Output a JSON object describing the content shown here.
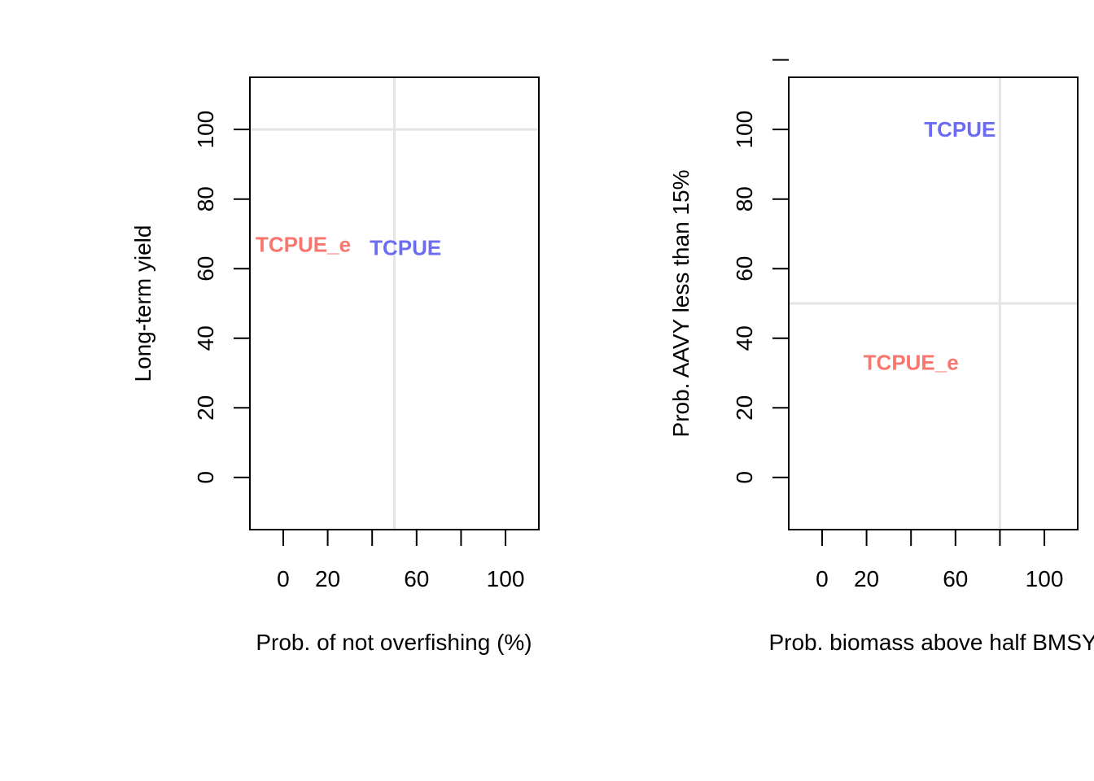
{
  "chart_data": [
    {
      "type": "scatter",
      "xlabel": "Prob. of not overfishing (%)",
      "ylabel": "Long-term yield",
      "xlim": [
        -15,
        115
      ],
      "ylim": [
        -15,
        115
      ],
      "xticks": [
        0,
        20,
        40,
        60,
        80,
        100
      ],
      "xtick_labels": [
        "0",
        "20",
        "",
        "60",
        "",
        "100"
      ],
      "yticks": [
        0,
        20,
        40,
        60,
        80,
        100
      ],
      "ytick_labels": [
        "0",
        "20",
        "40",
        "60",
        "80",
        "100"
      ],
      "reference_lines": {
        "vertical": 50,
        "horizontal": 100
      },
      "points": [
        {
          "label": "TCPUE_e",
          "x": 9,
          "y": 67,
          "color": "#F8766D"
        },
        {
          "label": "TCPUE",
          "x": 55,
          "y": 66,
          "color": "#6C6CF2"
        }
      ]
    },
    {
      "type": "scatter",
      "xlabel": "Prob. biomass above half BMSY",
      "ylabel": "Prob. AAVY less than 15%",
      "xlim": [
        -15,
        115
      ],
      "ylim": [
        -15,
        115
      ],
      "xticks": [
        0,
        20,
        40,
        60,
        80,
        100
      ],
      "xtick_labels": [
        "0",
        "20",
        "",
        "60",
        "",
        "100"
      ],
      "yticks": [
        0,
        20,
        40,
        60,
        80,
        100,
        120
      ],
      "ytick_labels": [
        "0",
        "20",
        "40",
        "60",
        "80",
        "100",
        ""
      ],
      "reference_lines": {
        "vertical": 80,
        "horizontal": 50
      },
      "points": [
        {
          "label": "TCPUE",
          "x": 62,
          "y": 100,
          "color": "#6C6CF2"
        },
        {
          "label": "TCPUE_e",
          "x": 40,
          "y": 33,
          "color": "#F8766D"
        }
      ]
    }
  ],
  "style": {
    "refline_color": "#E5E5E5",
    "axis_color": "#000000"
  }
}
